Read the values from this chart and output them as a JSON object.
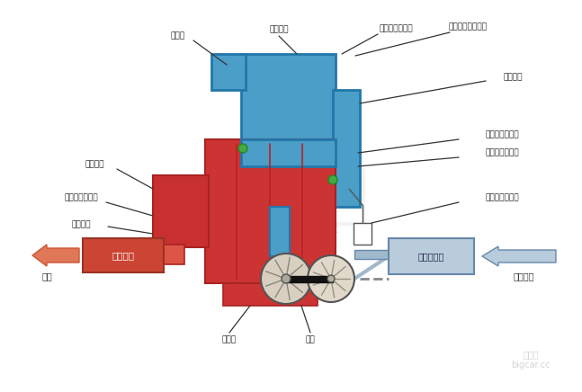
{
  "labels": {
    "leng_que_qi": "冷却器",
    "jin_qi_qi_guan": "进气歧管",
    "jin_qi_ya_li": "进气压力传感器",
    "he_jin_qi_wen_du": "和进气温度传感器",
    "jie_liu_ti": "节流阀体",
    "pai_qi_qi_guan": "排气歧管",
    "zeng_ya_xian_zhi_fa": "增压压力限制阀",
    "ya_li_dan_yuan": "压力单元",
    "zeng_ya_ya_li": "增压压力传感器",
    "jin_qi_wen_du": "进气温度传感器",
    "zeng_ya_xun_huan_fa": "增压空气循环阀",
    "san_yuan_cui_hua": "三元催化",
    "fei_qi": "废气",
    "kong_qi_lv_qing_qi": "空气滤清器",
    "xin_xian_kong_qi": "新鲜空气",
    "pu_tong_fa": "普通阀",
    "wo_lun": "涡轮"
  },
  "colors": {
    "blue": "#4a9ec8",
    "blue_dark": "#2277aa",
    "red_engine": "#cc3333",
    "red_dark": "#aa2222",
    "red_cat": "#cc4433",
    "orange_arrow": "#e07858",
    "gray_filter": "#b8ccdc",
    "gray_pipe": "#a0b8cc",
    "white": "#ffffff",
    "black": "#111111",
    "green": "#44aa44",
    "line": "#333333",
    "watermark": "#cccccc"
  }
}
